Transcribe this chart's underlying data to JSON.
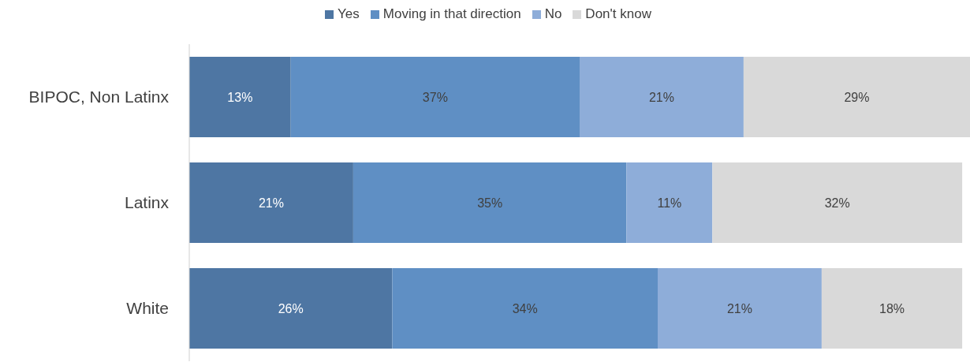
{
  "chart_data": {
    "type": "bar",
    "orientation": "horizontal",
    "stacked": true,
    "categories": [
      "BIPOC, Non Latinx",
      "Latinx",
      "White"
    ],
    "series": [
      {
        "name": "Yes",
        "color": "#4e76a3",
        "values": [
          13,
          21,
          26
        ],
        "value_labels": [
          "13%",
          "21%",
          "26%"
        ]
      },
      {
        "name": "Moving in that direction",
        "color": "#5f8fc4",
        "values": [
          37,
          35,
          34
        ],
        "value_labels": [
          "37%",
          "35%",
          "34%"
        ]
      },
      {
        "name": "No",
        "color": "#8eadd9",
        "values": [
          21,
          11,
          21
        ],
        "value_labels": [
          "21%",
          "11%",
          "21%"
        ]
      },
      {
        "name": "Don't know",
        "color": "#d9d9d9",
        "values": [
          29,
          32,
          18
        ],
        "value_labels": [
          "29%",
          "32%",
          "18%"
        ]
      }
    ],
    "legend": "top",
    "grid": false,
    "tick_labels": "y"
  }
}
